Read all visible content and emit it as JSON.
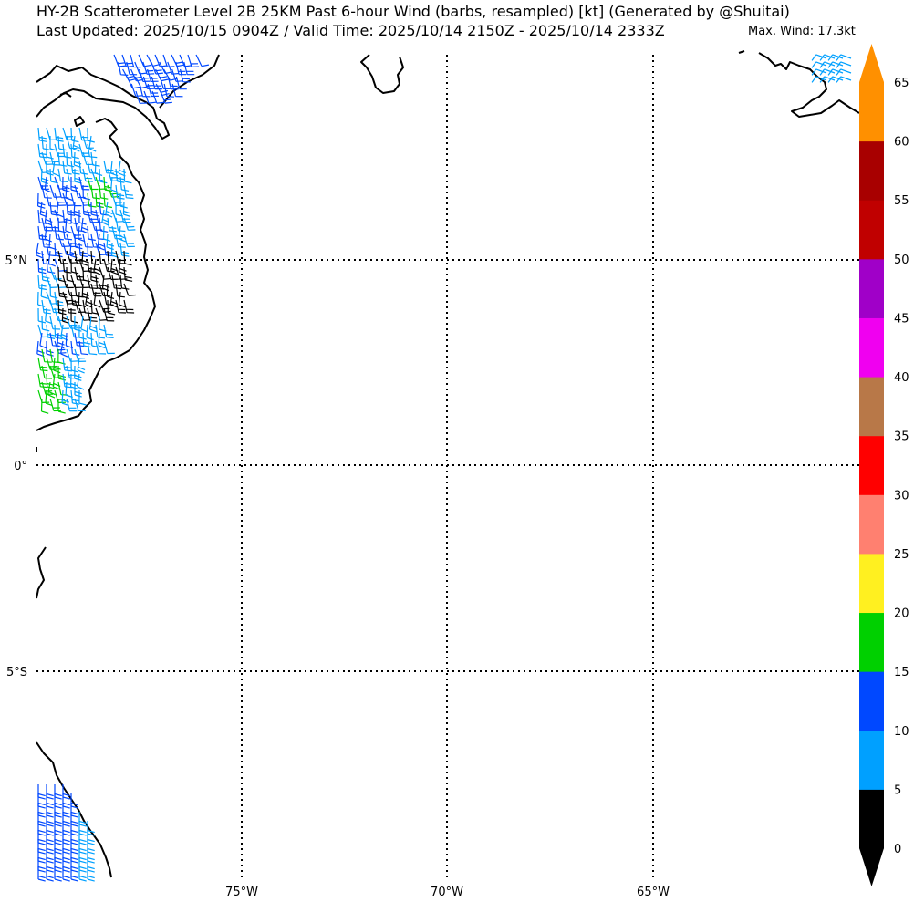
{
  "title": {
    "line1": "HY-2B Scatterometer Level 2B 25KM Past 6-hour Wind (barbs, resampled) [kt] (Generated by @Shuitai)",
    "line2": "Last Updated: 2025/10/15 0904Z / Valid Time: 2025/10/14 2150Z - 2025/10/14 2333Z",
    "max_wind": "Max. Wind: 17.3kt"
  },
  "axes": {
    "lat_labels": [
      "5°N",
      "0°",
      "5°S"
    ],
    "lon_labels": [
      "75°W",
      "70°W",
      "65°W"
    ]
  },
  "colorbar": {
    "levels": [
      "0",
      "5",
      "10",
      "15",
      "20",
      "25",
      "30",
      "35",
      "40",
      "45",
      "50",
      "55",
      "60",
      "65"
    ],
    "colors": [
      "#000000",
      "#00a0ff",
      "#0048ff",
      "#00d000",
      "#fff020",
      "#ff8070",
      "#ff0000",
      "#b87848",
      "#f000f0",
      "#a000c8",
      "#c00000",
      "#a80000",
      "#ff9000"
    ]
  }
}
